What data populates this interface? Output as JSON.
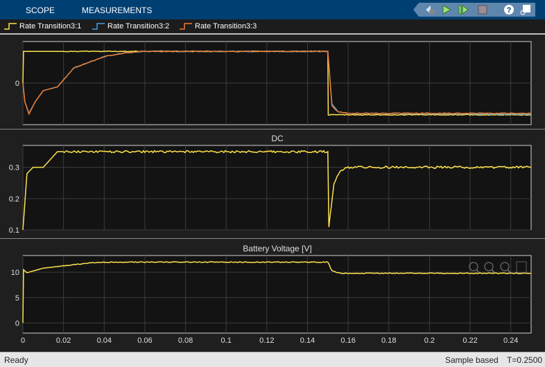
{
  "tabs": [
    "SCOPE",
    "MEASUREMENTS"
  ],
  "toolbar": {
    "icons": [
      "step-back-settings-icon",
      "run-icon",
      "step-forward-icon",
      "stop-icon",
      "help-icon",
      "undock-icon"
    ]
  },
  "legend": [
    {
      "label": "Rate Transition3:1",
      "color": "#ffe44d"
    },
    {
      "label": "Rate Transition3:2",
      "color": "#3c9ee8"
    },
    {
      "label": "Rate Transition3:3",
      "color": "#f07a2e"
    }
  ],
  "status": {
    "left": "Ready",
    "mode": "Sample based",
    "time": "T=0.2500"
  },
  "chart_data": [
    {
      "type": "line",
      "title": "",
      "ylim": [
        -1.1,
        1.1
      ],
      "yticks": [
        0
      ],
      "xlim": [
        0,
        0.25
      ],
      "grid": true,
      "series": [
        {
          "name": "Rate Transition3:1",
          "color": "#ffe44d",
          "x": [
            0,
            0.0003,
            0.15,
            0.1502,
            0.25
          ],
          "y": [
            0,
            0.84,
            0.84,
            -0.84,
            -0.84
          ]
        },
        {
          "name": "Rate Transition3:2",
          "color": "#3c9ee8",
          "x": [
            0,
            0.001,
            0.003,
            0.006,
            0.01,
            0.017,
            0.025,
            0.04,
            0.05,
            0.06,
            0.15,
            0.152,
            0.155,
            0.16,
            0.25
          ],
          "y": [
            0,
            -0.5,
            -0.8,
            -0.5,
            -0.2,
            -0.1,
            0.4,
            0.7,
            0.8,
            0.84,
            0.84,
            -0.55,
            -0.75,
            -0.8,
            -0.82
          ]
        },
        {
          "name": "Rate Transition3:3",
          "color": "#f07a2e",
          "x": [
            0,
            0.001,
            0.003,
            0.006,
            0.01,
            0.017,
            0.025,
            0.04,
            0.05,
            0.06,
            0.15,
            0.152,
            0.155,
            0.16,
            0.25
          ],
          "y": [
            0,
            -0.5,
            -0.82,
            -0.5,
            -0.2,
            -0.1,
            0.4,
            0.7,
            0.8,
            0.84,
            0.84,
            -0.6,
            -0.76,
            -0.8,
            -0.8
          ]
        }
      ]
    },
    {
      "type": "line",
      "title": "DC",
      "ylim": [
        0.1,
        0.37
      ],
      "yticks": [
        0.1,
        0.2,
        0.3
      ],
      "xlim": [
        0,
        0.25
      ],
      "grid": true,
      "series": [
        {
          "color": "#ffe44d",
          "x": [
            0,
            0.002,
            0.005,
            0.01,
            0.017,
            0.15,
            0.1505,
            0.153,
            0.156,
            0.16,
            0.25
          ],
          "y": [
            0.1,
            0.28,
            0.3,
            0.3,
            0.35,
            0.35,
            0.11,
            0.25,
            0.29,
            0.3,
            0.3
          ]
        }
      ]
    },
    {
      "type": "line",
      "title": "Battery Voltage [V]",
      "ylim": [
        -2,
        13.3
      ],
      "yticks": [
        0,
        5,
        10
      ],
      "xlim": [
        0,
        0.25
      ],
      "grid": true,
      "xticks": [
        "0",
        "0.02",
        "0.04",
        "0.06",
        "0.08",
        "0.1",
        "0.12",
        "0.14",
        "0.16",
        "0.18",
        "0.2",
        "0.22",
        "0.24"
      ],
      "series": [
        {
          "color": "#ffe44d",
          "x": [
            0,
            0.0003,
            0.002,
            0.01,
            0.025,
            0.035,
            0.05,
            0.15,
            0.152,
            0.156,
            0.25
          ],
          "y": [
            0,
            10.5,
            9.9,
            10.8,
            11.5,
            11.9,
            12,
            12,
            10.3,
            9.8,
            9.8
          ]
        }
      ]
    }
  ]
}
